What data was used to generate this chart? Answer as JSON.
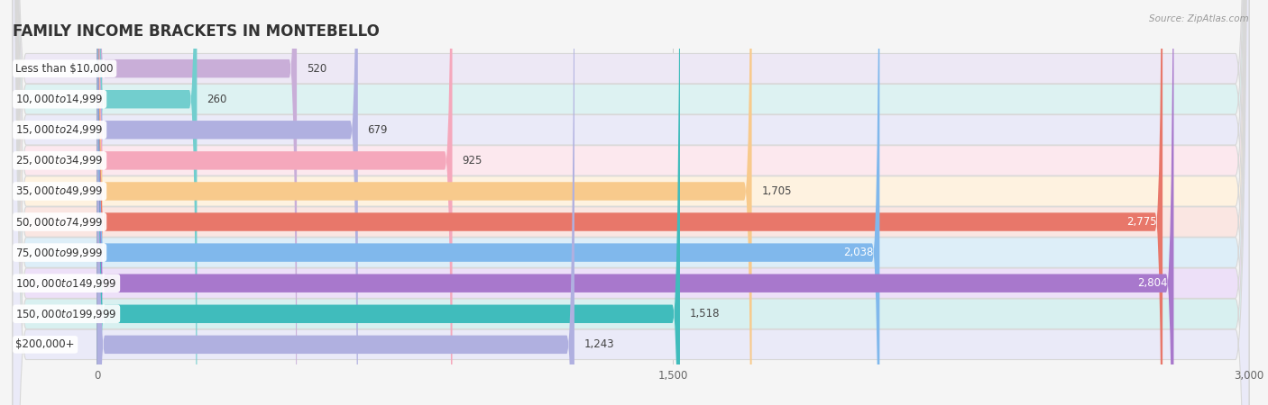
{
  "title": "FAMILY INCOME BRACKETS IN MONTEBELLO",
  "source": "Source: ZipAtlas.com",
  "categories": [
    "Less than $10,000",
    "$10,000 to $14,999",
    "$15,000 to $24,999",
    "$25,000 to $34,999",
    "$35,000 to $49,999",
    "$50,000 to $74,999",
    "$75,000 to $99,999",
    "$100,000 to $149,999",
    "$150,000 to $199,999",
    "$200,000+"
  ],
  "values": [
    520,
    260,
    679,
    925,
    1705,
    2775,
    2038,
    2804,
    1518,
    1243
  ],
  "bar_colors": [
    "#c9aed8",
    "#72cece",
    "#b0b0e0",
    "#f5a8bc",
    "#f8ca8c",
    "#e8776a",
    "#80b8ec",
    "#a878cc",
    "#40bcbc",
    "#b0b0e0"
  ],
  "bg_colors": [
    "#ede8f5",
    "#ddf2f2",
    "#eaeaf8",
    "#fce8ee",
    "#fef2e0",
    "#fae6e2",
    "#ddeef8",
    "#ede0f8",
    "#d8f0f0",
    "#eaeaf8"
  ],
  "xlim": [
    0,
    3000
  ],
  "xticks": [
    0,
    1500,
    3000
  ],
  "xtick_labels": [
    "0",
    "1,500",
    "3,000"
  ],
  "background_color": "#f5f5f5",
  "title_fontsize": 12,
  "label_fontsize": 8.5,
  "value_fontsize": 8.5,
  "value_threshold": 1900
}
